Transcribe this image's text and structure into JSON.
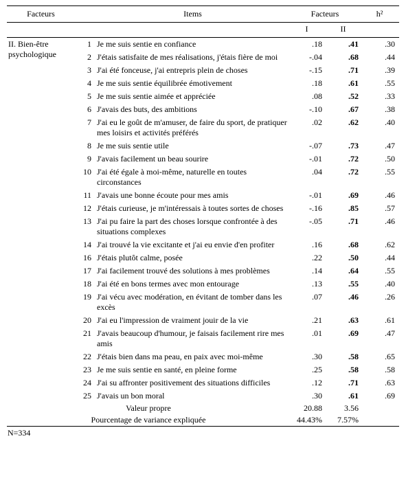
{
  "headers": {
    "facteurs": "Facteurs",
    "items": "Items",
    "facteurs2": "Facteurs",
    "h2": "h²",
    "I": "I",
    "II": "II"
  },
  "factor_label": "II. Bien-être psychologique",
  "rows": [
    {
      "n": "1",
      "item": "Je me suis sentie en confiance",
      "I": ".18",
      "II": ".41",
      "h2": ".30"
    },
    {
      "n": "2",
      "item": "J'étais satisfaite de mes réalisations, j'étais fière de moi",
      "I": "-.04",
      "II": ".68",
      "h2": ".44"
    },
    {
      "n": "3",
      "item": "J'ai été fonceuse, j'ai entrepris plein de choses",
      "I": "-.15",
      "II": ".71",
      "h2": ".39"
    },
    {
      "n": "4",
      "item": "Je me suis sentie équilibrée émotivement",
      "I": ".18",
      "II": ".61",
      "h2": ".55"
    },
    {
      "n": "5",
      "item": "Je me suis sentie aimée et appréciée",
      "I": ".08",
      "II": ".52",
      "h2": ".33"
    },
    {
      "n": "6",
      "item": "J'avais des buts, des ambitions",
      "I": "-.10",
      "II": ".67",
      "h2": ".38"
    },
    {
      "n": "7",
      "item": "J'ai eu le goût de m'amuser, de faire du sport, de pratiquer mes loisirs et activités préférés",
      "I": ".02",
      "II": ".62",
      "h2": ".40"
    },
    {
      "n": "8",
      "item": "Je me suis sentie utile",
      "I": "-.07",
      "II": ".73",
      "h2": ".47"
    },
    {
      "n": "9",
      "item": "J'avais facilement un beau sourire",
      "I": "-.01",
      "II": ".72",
      "h2": ".50"
    },
    {
      "n": "10",
      "item": "J'ai été égale à moi-même, naturelle en toutes circonstances",
      "I": ".04",
      "II": ".72",
      "h2": ".55"
    },
    {
      "n": "11",
      "item": "J'avais une bonne écoute pour mes amis",
      "I": "-.01",
      "II": ".69",
      "h2": ".46"
    },
    {
      "n": "12",
      "item": "J'étais curieuse, je m'intéressais à toutes sortes de choses",
      "I": "-.16",
      "II": ".85",
      "h2": ".57"
    },
    {
      "n": "13",
      "item": "J'ai pu faire la part des choses lorsque confrontée à des situations complexes",
      "I": "-.05",
      "II": ".71",
      "h2": ".46"
    },
    {
      "n": "14",
      "item": "J'ai trouvé la vie excitante et j'ai eu envie d'en profiter",
      "I": ".16",
      "II": ".68",
      "h2": ".62"
    },
    {
      "n": "16",
      "item": "J'étais plutôt calme, posée",
      "I": ".22",
      "II": ".50",
      "h2": ".44"
    },
    {
      "n": "17",
      "item": "J'ai facilement trouvé des solutions à mes problèmes",
      "I": ".14",
      "II": ".64",
      "h2": ".55"
    },
    {
      "n": "18",
      "item": "J'ai été en bons termes avec mon entourage",
      "I": ".13",
      "II": ".55",
      "h2": ".40"
    },
    {
      "n": "19",
      "item": "J'ai vécu avec modération, en évitant de tomber dans les excès",
      "I": ".07",
      "II": ".46",
      "h2": ".26"
    },
    {
      "n": "20",
      "item": "J'ai eu l'impression de vraiment jouir de la vie",
      "I": ".21",
      "II": ".63",
      "h2": ".61"
    },
    {
      "n": "21",
      "item": "J'avais beaucoup d'humour, je faisais facilement rire mes amis",
      "I": ".01",
      "II": ".69",
      "h2": ".47"
    },
    {
      "n": "22",
      "item": "J'étais bien dans ma peau, en paix avec moi-même",
      "I": ".30",
      "II": ".58",
      "h2": ".65"
    },
    {
      "n": "23",
      "item": "Je me suis sentie en santé, en pleine forme",
      "I": ".25",
      "II": ".58",
      "h2": ".58"
    },
    {
      "n": "24",
      "item": "J'ai su affronter positivement des situations difficiles",
      "I": ".12",
      "II": ".71",
      "h2": ".63"
    },
    {
      "n": "25",
      "item": "J'avais un bon moral",
      "I": ".30",
      "II": ".61",
      "h2": ".69"
    }
  ],
  "footer": {
    "eigen_label": "Valeur propre",
    "eigen_I": "20.88",
    "eigen_II": "3.56",
    "var_label": "Pourcentage de variance expliquée",
    "var_I": "44.43%",
    "var_II": "7.57%"
  },
  "note": "N=334"
}
